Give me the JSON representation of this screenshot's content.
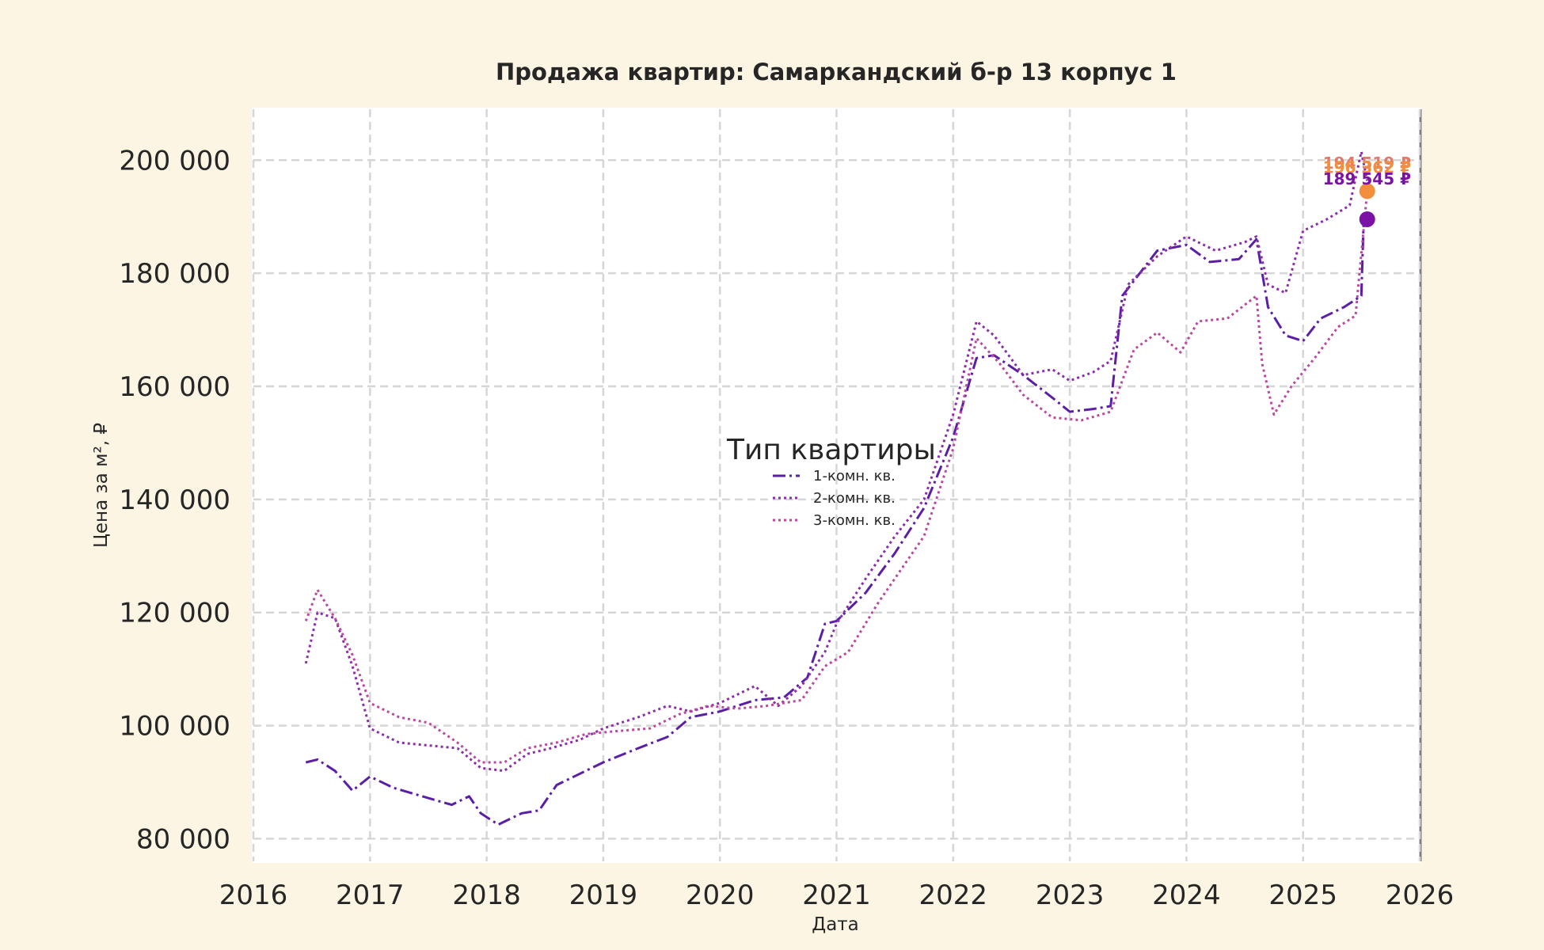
{
  "chart_data": {
    "type": "line",
    "title": "Продажа квартир: Самаркандский б-р 13 корпус 1",
    "xlabel": "Дата",
    "ylabel": "Цена за м², ₽",
    "xlim": [
      2016,
      2026
    ],
    "ylim": [
      76000,
      209000
    ],
    "x_ticks": [
      "2016",
      "2017",
      "2018",
      "2019",
      "2020",
      "2021",
      "2022",
      "2023",
      "2024",
      "2025",
      "2026"
    ],
    "y_ticks": [
      {
        "value": 80000,
        "label": "80 000"
      },
      {
        "value": 100000,
        "label": "100 000"
      },
      {
        "value": 120000,
        "label": "120 000"
      },
      {
        "value": 140000,
        "label": "140 000"
      },
      {
        "value": 160000,
        "label": "160 000"
      },
      {
        "value": 180000,
        "label": "180 000"
      },
      {
        "value": 200000,
        "label": "200 000"
      }
    ],
    "grid": true,
    "legend": {
      "title": "Тип квартиры",
      "placement": "center"
    },
    "series": [
      {
        "name": "1-комн. кв.",
        "color": "#5a1fa6",
        "dash": "dashdot",
        "points": [
          [
            2016.45,
            93500
          ],
          [
            2016.55,
            94000
          ],
          [
            2016.7,
            92000
          ],
          [
            2016.85,
            88500
          ],
          [
            2017.0,
            91000
          ],
          [
            2017.2,
            89000
          ],
          [
            2017.45,
            87500
          ],
          [
            2017.7,
            86000
          ],
          [
            2017.85,
            87500
          ],
          [
            2017.95,
            84500
          ],
          [
            2018.1,
            82500
          ],
          [
            2018.3,
            84500
          ],
          [
            2018.45,
            85000
          ],
          [
            2018.6,
            89500
          ],
          [
            2018.8,
            91500
          ],
          [
            2019.0,
            93500
          ],
          [
            2019.3,
            96000
          ],
          [
            2019.55,
            98000
          ],
          [
            2019.75,
            101500
          ],
          [
            2020.0,
            102500
          ],
          [
            2020.3,
            104500
          ],
          [
            2020.55,
            105000
          ],
          [
            2020.75,
            108500
          ],
          [
            2020.9,
            118000
          ],
          [
            2021.0,
            118500
          ],
          [
            2021.25,
            123500
          ],
          [
            2021.5,
            130500
          ],
          [
            2021.75,
            138500
          ],
          [
            2022.0,
            151000
          ],
          [
            2022.2,
            165000
          ],
          [
            2022.35,
            165500
          ],
          [
            2022.6,
            162000
          ],
          [
            2022.85,
            158000
          ],
          [
            2023.0,
            155500
          ],
          [
            2023.2,
            156000
          ],
          [
            2023.35,
            156500
          ],
          [
            2023.45,
            176000
          ],
          [
            2023.6,
            180000
          ],
          [
            2023.75,
            184000
          ],
          [
            2024.0,
            185000
          ],
          [
            2024.2,
            182000
          ],
          [
            2024.45,
            182500
          ],
          [
            2024.6,
            186000
          ],
          [
            2024.7,
            174000
          ],
          [
            2024.85,
            169000
          ],
          [
            2025.0,
            168000
          ],
          [
            2025.15,
            172000
          ],
          [
            2025.35,
            174000
          ],
          [
            2025.5,
            176000
          ],
          [
            2025.52,
            189545
          ]
        ]
      },
      {
        "name": "2-комн. кв.",
        "color": "#8a2fa8",
        "dash": "dotted",
        "points": [
          [
            2016.45,
            111000
          ],
          [
            2016.55,
            120000
          ],
          [
            2016.7,
            119000
          ],
          [
            2016.85,
            110500
          ],
          [
            2017.0,
            99500
          ],
          [
            2017.25,
            97000
          ],
          [
            2017.5,
            96500
          ],
          [
            2017.75,
            96000
          ],
          [
            2017.95,
            92500
          ],
          [
            2018.15,
            92000
          ],
          [
            2018.35,
            95000
          ],
          [
            2018.55,
            96000
          ],
          [
            2018.8,
            97500
          ],
          [
            2019.0,
            99500
          ],
          [
            2019.3,
            101500
          ],
          [
            2019.55,
            103500
          ],
          [
            2019.75,
            102500
          ],
          [
            2020.0,
            104000
          ],
          [
            2020.3,
            107000
          ],
          [
            2020.5,
            103500
          ],
          [
            2020.7,
            107000
          ],
          [
            2020.9,
            113000
          ],
          [
            2021.0,
            118000
          ],
          [
            2021.25,
            126000
          ],
          [
            2021.5,
            133500
          ],
          [
            2021.75,
            140000
          ],
          [
            2022.0,
            155000
          ],
          [
            2022.2,
            171500
          ],
          [
            2022.35,
            169000
          ],
          [
            2022.6,
            162000
          ],
          [
            2022.85,
            163000
          ],
          [
            2023.0,
            161000
          ],
          [
            2023.2,
            162500
          ],
          [
            2023.35,
            164500
          ],
          [
            2023.5,
            178000
          ],
          [
            2023.75,
            183000
          ],
          [
            2024.0,
            186500
          ],
          [
            2024.25,
            184000
          ],
          [
            2024.5,
            185500
          ],
          [
            2024.6,
            186500
          ],
          [
            2024.7,
            178000
          ],
          [
            2024.85,
            176500
          ],
          [
            2025.0,
            187500
          ],
          [
            2025.2,
            189500
          ],
          [
            2025.4,
            192000
          ],
          [
            2025.5,
            201500
          ],
          [
            2025.55,
            196362
          ]
        ]
      },
      {
        "name": "3-комн. кв.",
        "color": "#b84aa0",
        "dash": "dotted",
        "points": [
          [
            2016.45,
            118500
          ],
          [
            2016.55,
            124000
          ],
          [
            2016.7,
            119000
          ],
          [
            2016.85,
            112500
          ],
          [
            2017.0,
            104000
          ],
          [
            2017.25,
            101500
          ],
          [
            2017.5,
            100500
          ],
          [
            2017.75,
            97000
          ],
          [
            2017.95,
            93500
          ],
          [
            2018.15,
            93500
          ],
          [
            2018.35,
            96000
          ],
          [
            2018.6,
            97000
          ],
          [
            2018.85,
            98500
          ],
          [
            2019.1,
            99000
          ],
          [
            2019.4,
            99500
          ],
          [
            2019.65,
            102000
          ],
          [
            2019.9,
            103500
          ],
          [
            2020.15,
            103000
          ],
          [
            2020.4,
            103500
          ],
          [
            2020.7,
            104500
          ],
          [
            2020.9,
            110500
          ],
          [
            2021.1,
            113000
          ],
          [
            2021.35,
            121500
          ],
          [
            2021.55,
            127500
          ],
          [
            2021.75,
            133500
          ],
          [
            2022.0,
            149000
          ],
          [
            2022.2,
            168500
          ],
          [
            2022.4,
            164000
          ],
          [
            2022.6,
            158500
          ],
          [
            2022.85,
            154500
          ],
          [
            2023.1,
            154000
          ],
          [
            2023.35,
            155500
          ],
          [
            2023.55,
            166500
          ],
          [
            2023.75,
            169500
          ],
          [
            2023.95,
            166000
          ],
          [
            2024.1,
            171500
          ],
          [
            2024.35,
            172000
          ],
          [
            2024.6,
            176000
          ],
          [
            2024.65,
            164000
          ],
          [
            2024.75,
            155000
          ],
          [
            2024.9,
            160000
          ],
          [
            2025.1,
            165000
          ],
          [
            2025.3,
            170500
          ],
          [
            2025.45,
            172500
          ],
          [
            2025.55,
            194519
          ]
        ]
      }
    ],
    "end_markers": [
      {
        "x": 2025.55,
        "y": 194519,
        "color": "#f28e3c"
      },
      {
        "x": 2025.55,
        "y": 189545,
        "color": "#7a12a6"
      }
    ],
    "end_labels": [
      {
        "text": "194 519 ₽",
        "color": "#e07a6a",
        "y": 198500
      },
      {
        "text": "196 362 ₽",
        "color": "#f28e3c",
        "y": 197700
      },
      {
        "text": "189 545 ₽",
        "color": "#7a12a6",
        "y": 195700
      }
    ]
  }
}
